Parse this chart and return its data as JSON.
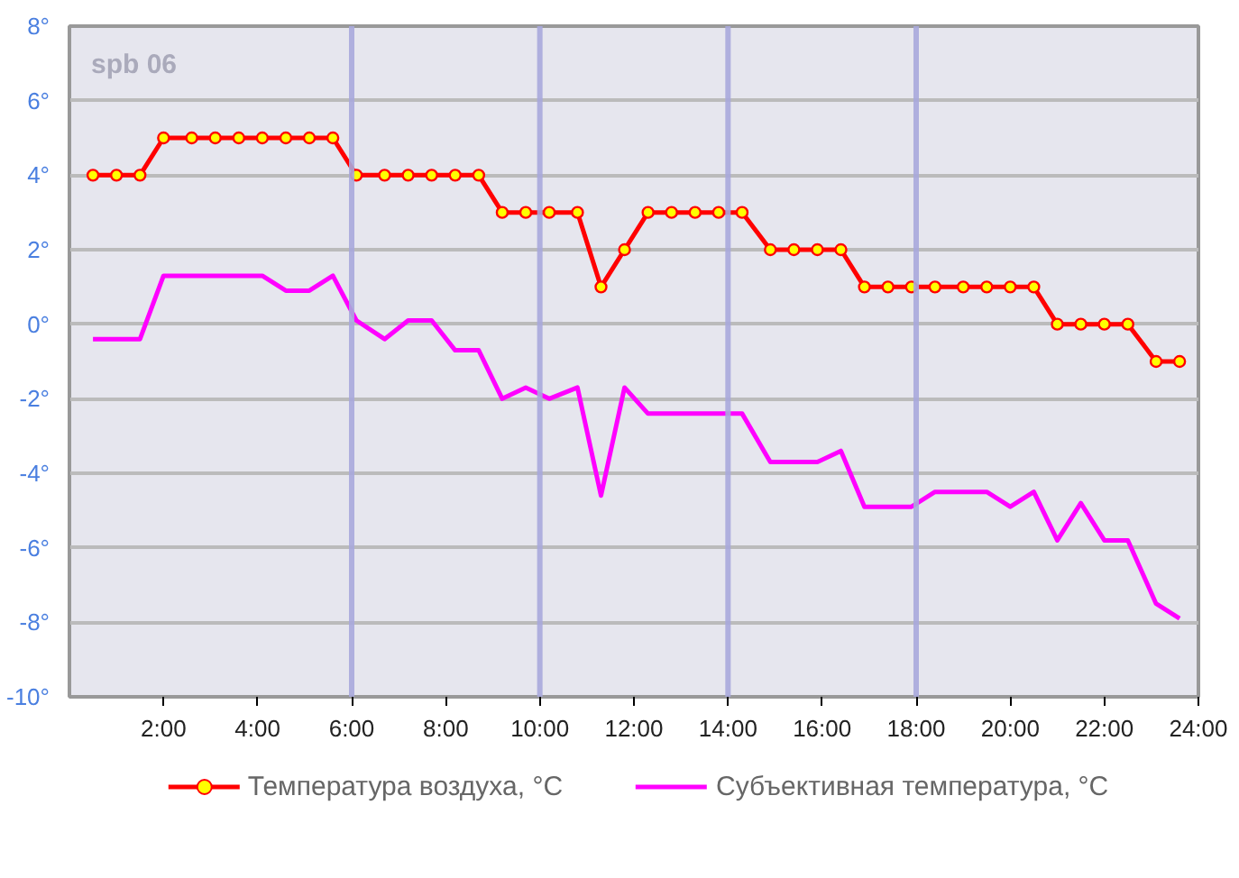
{
  "chart_data": {
    "type": "line",
    "annotations": [
      "spb 06"
    ],
    "x": [
      0.5,
      1.0,
      1.5,
      2.0,
      2.6,
      3.1,
      3.6,
      4.1,
      4.6,
      5.1,
      5.6,
      6.1,
      6.7,
      7.2,
      7.7,
      8.2,
      8.7,
      9.2,
      9.7,
      10.2,
      10.8,
      11.3,
      11.8,
      12.3,
      12.8,
      13.3,
      13.8,
      14.3,
      14.9,
      15.4,
      15.9,
      16.4,
      16.9,
      17.4,
      17.9,
      18.4,
      19.0,
      19.5,
      20.0,
      20.5,
      21.0,
      21.5,
      22.0,
      22.5,
      23.1,
      23.6
    ],
    "series": [
      {
        "name": "Температура воздуха, °C",
        "color": "#ff0000",
        "marker": "circle",
        "values": [
          4,
          4,
          4,
          5,
          5,
          5,
          5,
          5,
          5,
          5,
          5,
          4,
          4,
          4,
          4,
          4,
          4,
          3,
          3,
          3,
          3,
          1,
          2,
          3,
          3,
          3,
          3,
          3,
          2,
          2,
          2,
          2,
          1,
          1,
          1,
          1,
          1,
          1,
          1,
          1,
          0,
          0,
          0,
          0,
          -1,
          -1
        ]
      },
      {
        "name": "Субъективная температура, °C",
        "color": "#ff00ff",
        "marker": "none",
        "values": [
          -0.4,
          -0.4,
          -0.4,
          1.3,
          1.3,
          1.3,
          1.3,
          1.3,
          0.9,
          0.9,
          1.3,
          0.1,
          -0.4,
          0.1,
          0.1,
          -0.7,
          -0.7,
          -2.0,
          -1.7,
          -2.0,
          -1.7,
          -4.6,
          -1.7,
          -2.4,
          -2.4,
          -2.4,
          -2.4,
          -2.4,
          -3.7,
          -3.7,
          -3.7,
          -3.4,
          -4.9,
          -4.9,
          -4.9,
          -4.5,
          -4.5,
          -4.5,
          -4.9,
          -4.5,
          -5.8,
          -4.8,
          -5.8,
          -5.8,
          -7.5,
          -7.9
        ]
      }
    ],
    "xlim": [
      0,
      24
    ],
    "xticks": [
      {
        "value": 2,
        "label": "2:00"
      },
      {
        "value": 4,
        "label": "4:00"
      },
      {
        "value": 6,
        "label": "6:00"
      },
      {
        "value": 8,
        "label": "8:00"
      },
      {
        "value": 10,
        "label": "10:00"
      },
      {
        "value": 12,
        "label": "12:00"
      },
      {
        "value": 14,
        "label": "14:00"
      },
      {
        "value": 16,
        "label": "16:00"
      },
      {
        "value": 18,
        "label": "18:00"
      },
      {
        "value": 20,
        "label": "20:00"
      },
      {
        "value": 22,
        "label": "22:00"
      },
      {
        "value": 24,
        "label": "24:00"
      }
    ],
    "ylim": [
      -10,
      8
    ],
    "yticks": [
      {
        "value": -10,
        "label": "-10°"
      },
      {
        "value": -8,
        "label": "-8°"
      },
      {
        "value": -6,
        "label": "-6°"
      },
      {
        "value": -4,
        "label": "-4°"
      },
      {
        "value": -2,
        "label": "-2°"
      },
      {
        "value": 0,
        "label": "0°"
      },
      {
        "value": 2,
        "label": "2°"
      },
      {
        "value": 4,
        "label": "4°"
      },
      {
        "value": 6,
        "label": "6°"
      },
      {
        "value": 8,
        "label": "8°"
      }
    ],
    "ref_lines": [
      {
        "axis": "x",
        "value": 6,
        "color": "#a8a8dc"
      },
      {
        "axis": "x",
        "value": 10,
        "color": "#a8a8dc"
      },
      {
        "axis": "x",
        "value": 14,
        "color": "#a8a8dc"
      },
      {
        "axis": "x",
        "value": 18,
        "color": "#a8a8dc"
      }
    ],
    "grid": "y",
    "legend": "bottom"
  }
}
